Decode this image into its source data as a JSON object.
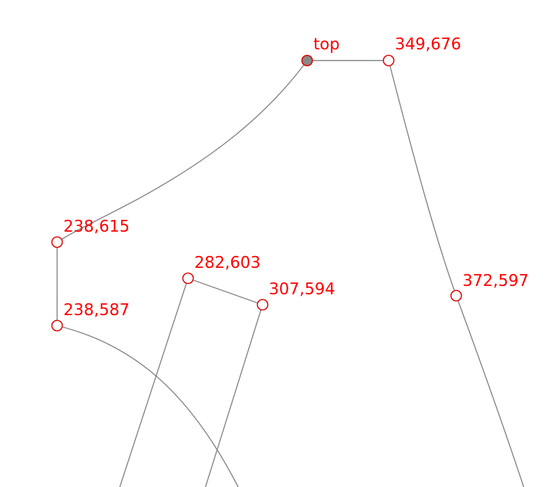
{
  "colors": {
    "background": "#ffffff",
    "line": "#808080",
    "point_stroke": "#e00000",
    "point_fill": "#ffffff",
    "selected_fill": "#888888",
    "label": "#ff0000"
  },
  "points": [
    {
      "id": "top",
      "label": "top",
      "selected": true
    },
    {
      "id": "p349_676",
      "label": "349,676",
      "selected": false
    },
    {
      "id": "p238_615",
      "label": "238,615",
      "selected": false
    },
    {
      "id": "p238_587",
      "label": "238,587",
      "selected": false
    },
    {
      "id": "p282_603",
      "label": "282,603",
      "selected": false
    },
    {
      "id": "p307_594",
      "label": "307,594",
      "selected": false
    },
    {
      "id": "p372_597",
      "label": "372,597",
      "selected": false
    }
  ]
}
